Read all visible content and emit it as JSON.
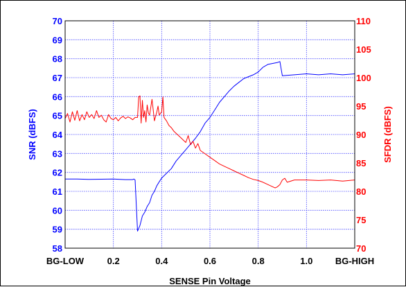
{
  "chart_data": {
    "type": "line",
    "xlabel": "SENSE Pin Voltage",
    "x_ticks": [
      "BG-LOW",
      "0.2",
      "0.4",
      "0.6",
      "0.8",
      "1.0",
      "BG-HIGH"
    ],
    "x_tick_values": [
      0,
      0.2,
      0.4,
      0.6,
      0.8,
      1.0,
      1.2
    ],
    "xlim": [
      0,
      1.2
    ],
    "y_left": {
      "label": "SNR (dBFS)",
      "ticks": [
        "58",
        "59",
        "60",
        "61",
        "62",
        "63",
        "64",
        "65",
        "66",
        "67",
        "68",
        "69",
        "70"
      ],
      "ylim": [
        58,
        70
      ],
      "color": "#0000ff"
    },
    "y_right": {
      "label": "SFDR (dBFS)",
      "ticks": [
        "70",
        "75",
        "80",
        "85",
        "90",
        "95",
        "100",
        "105",
        "110"
      ],
      "ylim": [
        70,
        110
      ],
      "color": "#ff0000"
    },
    "grid": true,
    "grid_color": "#4040ff",
    "series": [
      {
        "axis": "left",
        "color": "#0000ff",
        "x": [
          0,
          0.05,
          0.1,
          0.15,
          0.2,
          0.25,
          0.28,
          0.285,
          0.29,
          0.3,
          0.31,
          0.32,
          0.33,
          0.34,
          0.35,
          0.36,
          0.37,
          0.38,
          0.39,
          0.4,
          0.42,
          0.44,
          0.46,
          0.48,
          0.5,
          0.52,
          0.54,
          0.56,
          0.58,
          0.6,
          0.62,
          0.64,
          0.66,
          0.68,
          0.7,
          0.72,
          0.74,
          0.76,
          0.78,
          0.8,
          0.82,
          0.84,
          0.86,
          0.88,
          0.89,
          0.9,
          0.95,
          1.0,
          1.05,
          1.1,
          1.15,
          1.2
        ],
        "y": [
          61.65,
          61.65,
          61.63,
          61.64,
          61.65,
          61.62,
          61.62,
          61.65,
          61.6,
          58.9,
          59.2,
          59.7,
          59.9,
          60.2,
          60.4,
          60.8,
          61.0,
          61.3,
          61.5,
          61.7,
          61.95,
          62.2,
          62.6,
          62.9,
          63.2,
          63.5,
          63.8,
          64.15,
          64.6,
          64.9,
          65.3,
          65.7,
          66.0,
          66.3,
          66.55,
          66.75,
          66.95,
          67.05,
          67.15,
          67.3,
          67.55,
          67.7,
          67.75,
          67.8,
          67.85,
          67.1,
          67.15,
          67.2,
          67.15,
          67.2,
          67.15,
          67.2
        ]
      },
      {
        "axis": "right",
        "color": "#ff0000",
        "x": [
          0,
          0.01,
          0.02,
          0.03,
          0.04,
          0.05,
          0.06,
          0.07,
          0.08,
          0.09,
          0.1,
          0.11,
          0.12,
          0.13,
          0.14,
          0.15,
          0.16,
          0.17,
          0.18,
          0.19,
          0.2,
          0.21,
          0.22,
          0.23,
          0.24,
          0.25,
          0.26,
          0.27,
          0.28,
          0.29,
          0.3,
          0.305,
          0.31,
          0.315,
          0.32,
          0.325,
          0.33,
          0.335,
          0.34,
          0.345,
          0.35,
          0.36,
          0.37,
          0.38,
          0.385,
          0.39,
          0.4,
          0.405,
          0.41,
          0.42,
          0.43,
          0.44,
          0.45,
          0.46,
          0.47,
          0.48,
          0.49,
          0.5,
          0.51,
          0.52,
          0.53,
          0.54,
          0.55,
          0.56,
          0.58,
          0.6,
          0.62,
          0.64,
          0.66,
          0.68,
          0.7,
          0.72,
          0.74,
          0.76,
          0.78,
          0.8,
          0.82,
          0.84,
          0.85,
          0.86,
          0.87,
          0.88,
          0.89,
          0.9,
          0.91,
          0.92,
          0.95,
          1.0,
          1.05,
          1.1,
          1.15,
          1.2
        ],
        "y": [
          92.8,
          93.7,
          92.2,
          94.0,
          92.5,
          94.2,
          92.4,
          93.5,
          92.6,
          94.0,
          93.0,
          93.5,
          92.8,
          94.2,
          93.0,
          93.4,
          92.6,
          92.2,
          93.5,
          92.8,
          92.6,
          93.0,
          92.4,
          92.9,
          93.2,
          92.8,
          93.1,
          92.9,
          92.6,
          93.0,
          93.0,
          96.6,
          96.8,
          92.0,
          96.0,
          93.0,
          94.2,
          92.2,
          95.2,
          93.8,
          93.4,
          96.2,
          92.4,
          94.0,
          95.0,
          93.4,
          94.0,
          96.6,
          93.0,
          92.4,
          91.6,
          91.2,
          90.6,
          90.2,
          89.8,
          89.4,
          89.0,
          88.6,
          89.8,
          88.2,
          88.8,
          87.6,
          88.4,
          87.2,
          86.6,
          86.0,
          85.4,
          84.8,
          84.4,
          84.0,
          83.6,
          83.2,
          82.8,
          82.4,
          82.1,
          81.9,
          81.6,
          81.2,
          81.0,
          80.8,
          80.6,
          80.8,
          81.2,
          82.0,
          82.3,
          81.6,
          82.0,
          82.0,
          81.9,
          82.0,
          81.8,
          82.0
        ]
      }
    ]
  }
}
